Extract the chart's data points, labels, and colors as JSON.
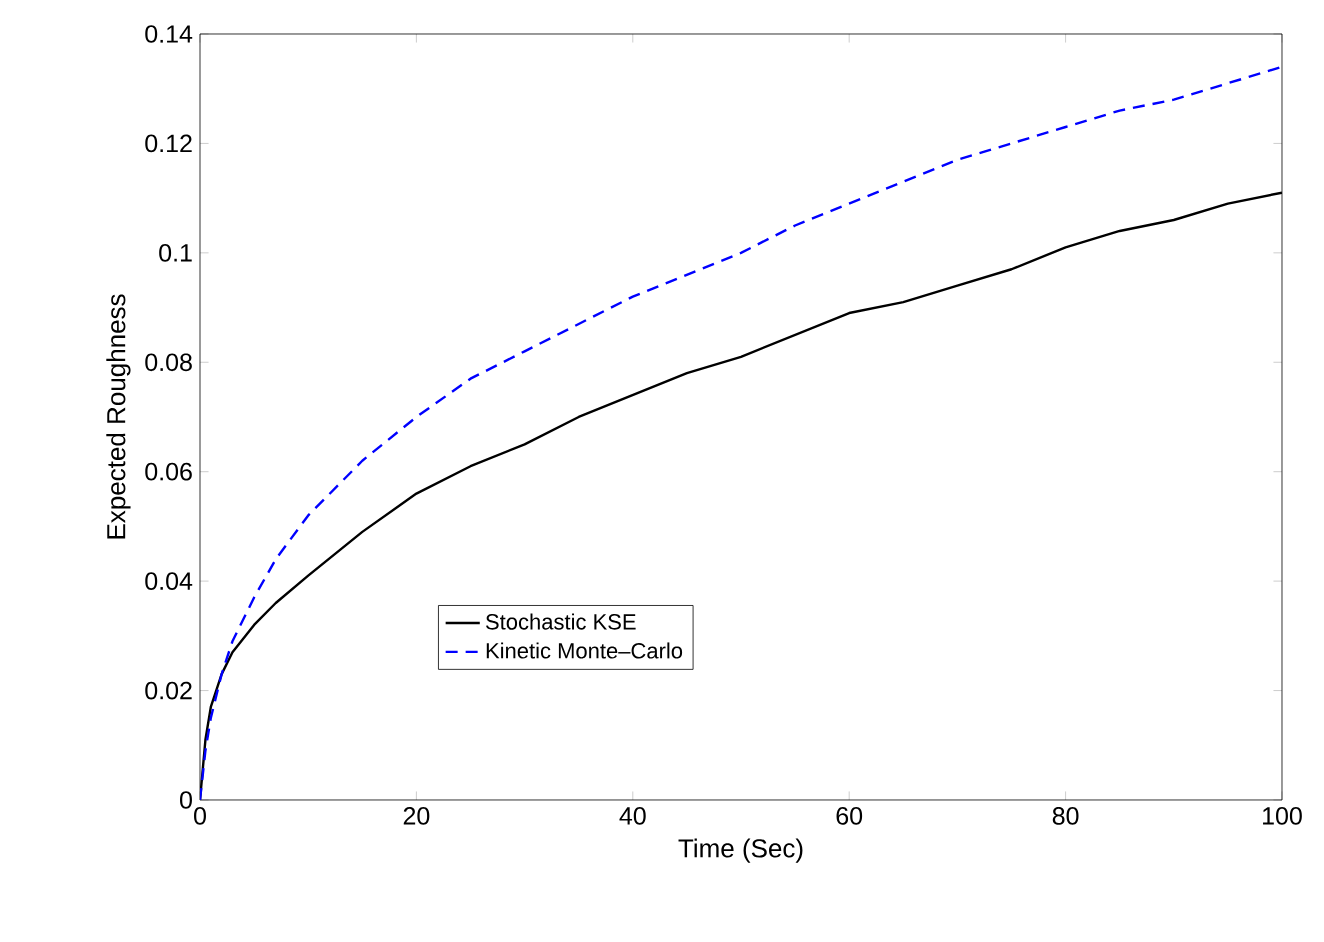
{
  "chart_data": {
    "type": "line",
    "xlabel": "Time (Sec)",
    "ylabel": "Expected Roughness",
    "xlim": [
      0,
      100
    ],
    "ylim": [
      0,
      0.14
    ],
    "xticks": [
      0,
      20,
      40,
      60,
      80,
      100
    ],
    "yticks": [
      0,
      0.02,
      0.04,
      0.06,
      0.08,
      0.1,
      0.12,
      0.14
    ],
    "legend": "bottom",
    "grid": false,
    "series": [
      {
        "name": "Stochastic KSE",
        "color": "#000000",
        "line_style": "solid",
        "x": [
          0,
          0.5,
          1,
          2,
          3,
          5,
          7,
          10,
          15,
          20,
          25,
          30,
          35,
          40,
          45,
          50,
          55,
          60,
          65,
          70,
          75,
          80,
          85,
          90,
          95,
          100
        ],
        "values": [
          0,
          0.011,
          0.017,
          0.023,
          0.027,
          0.032,
          0.036,
          0.041,
          0.049,
          0.056,
          0.061,
          0.065,
          0.07,
          0.074,
          0.078,
          0.081,
          0.085,
          0.089,
          0.091,
          0.094,
          0.097,
          0.101,
          0.104,
          0.106,
          0.109,
          0.111
        ]
      },
      {
        "name": "Kinetic Monte–Carlo",
        "color": "#0000ff",
        "line_style": "dashed",
        "x": [
          0,
          0.5,
          1,
          2,
          3,
          5,
          7,
          10,
          15,
          20,
          25,
          30,
          35,
          40,
          45,
          50,
          55,
          60,
          65,
          70,
          75,
          80,
          85,
          90,
          95,
          100
        ],
        "values": [
          0,
          0.009,
          0.015,
          0.023,
          0.029,
          0.037,
          0.044,
          0.052,
          0.062,
          0.07,
          0.077,
          0.082,
          0.087,
          0.092,
          0.096,
          0.1,
          0.105,
          0.109,
          0.113,
          0.117,
          0.12,
          0.123,
          0.126,
          0.128,
          0.131,
          0.134
        ]
      }
    ]
  }
}
